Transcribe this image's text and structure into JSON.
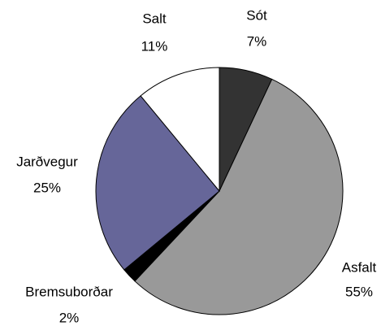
{
  "chart_data": {
    "type": "pie",
    "categories": [
      "Sót",
      "Asfalt",
      "Bremsuborðar",
      "Jarðvegur",
      "Salt"
    ],
    "values": [
      7,
      55,
      2,
      25,
      11
    ],
    "value_labels": [
      "7%",
      "55%",
      "2%",
      "25%",
      "11%"
    ],
    "colors": [
      "#333333",
      "#999999",
      "#000000",
      "#666699",
      "#ffffff"
    ]
  }
}
